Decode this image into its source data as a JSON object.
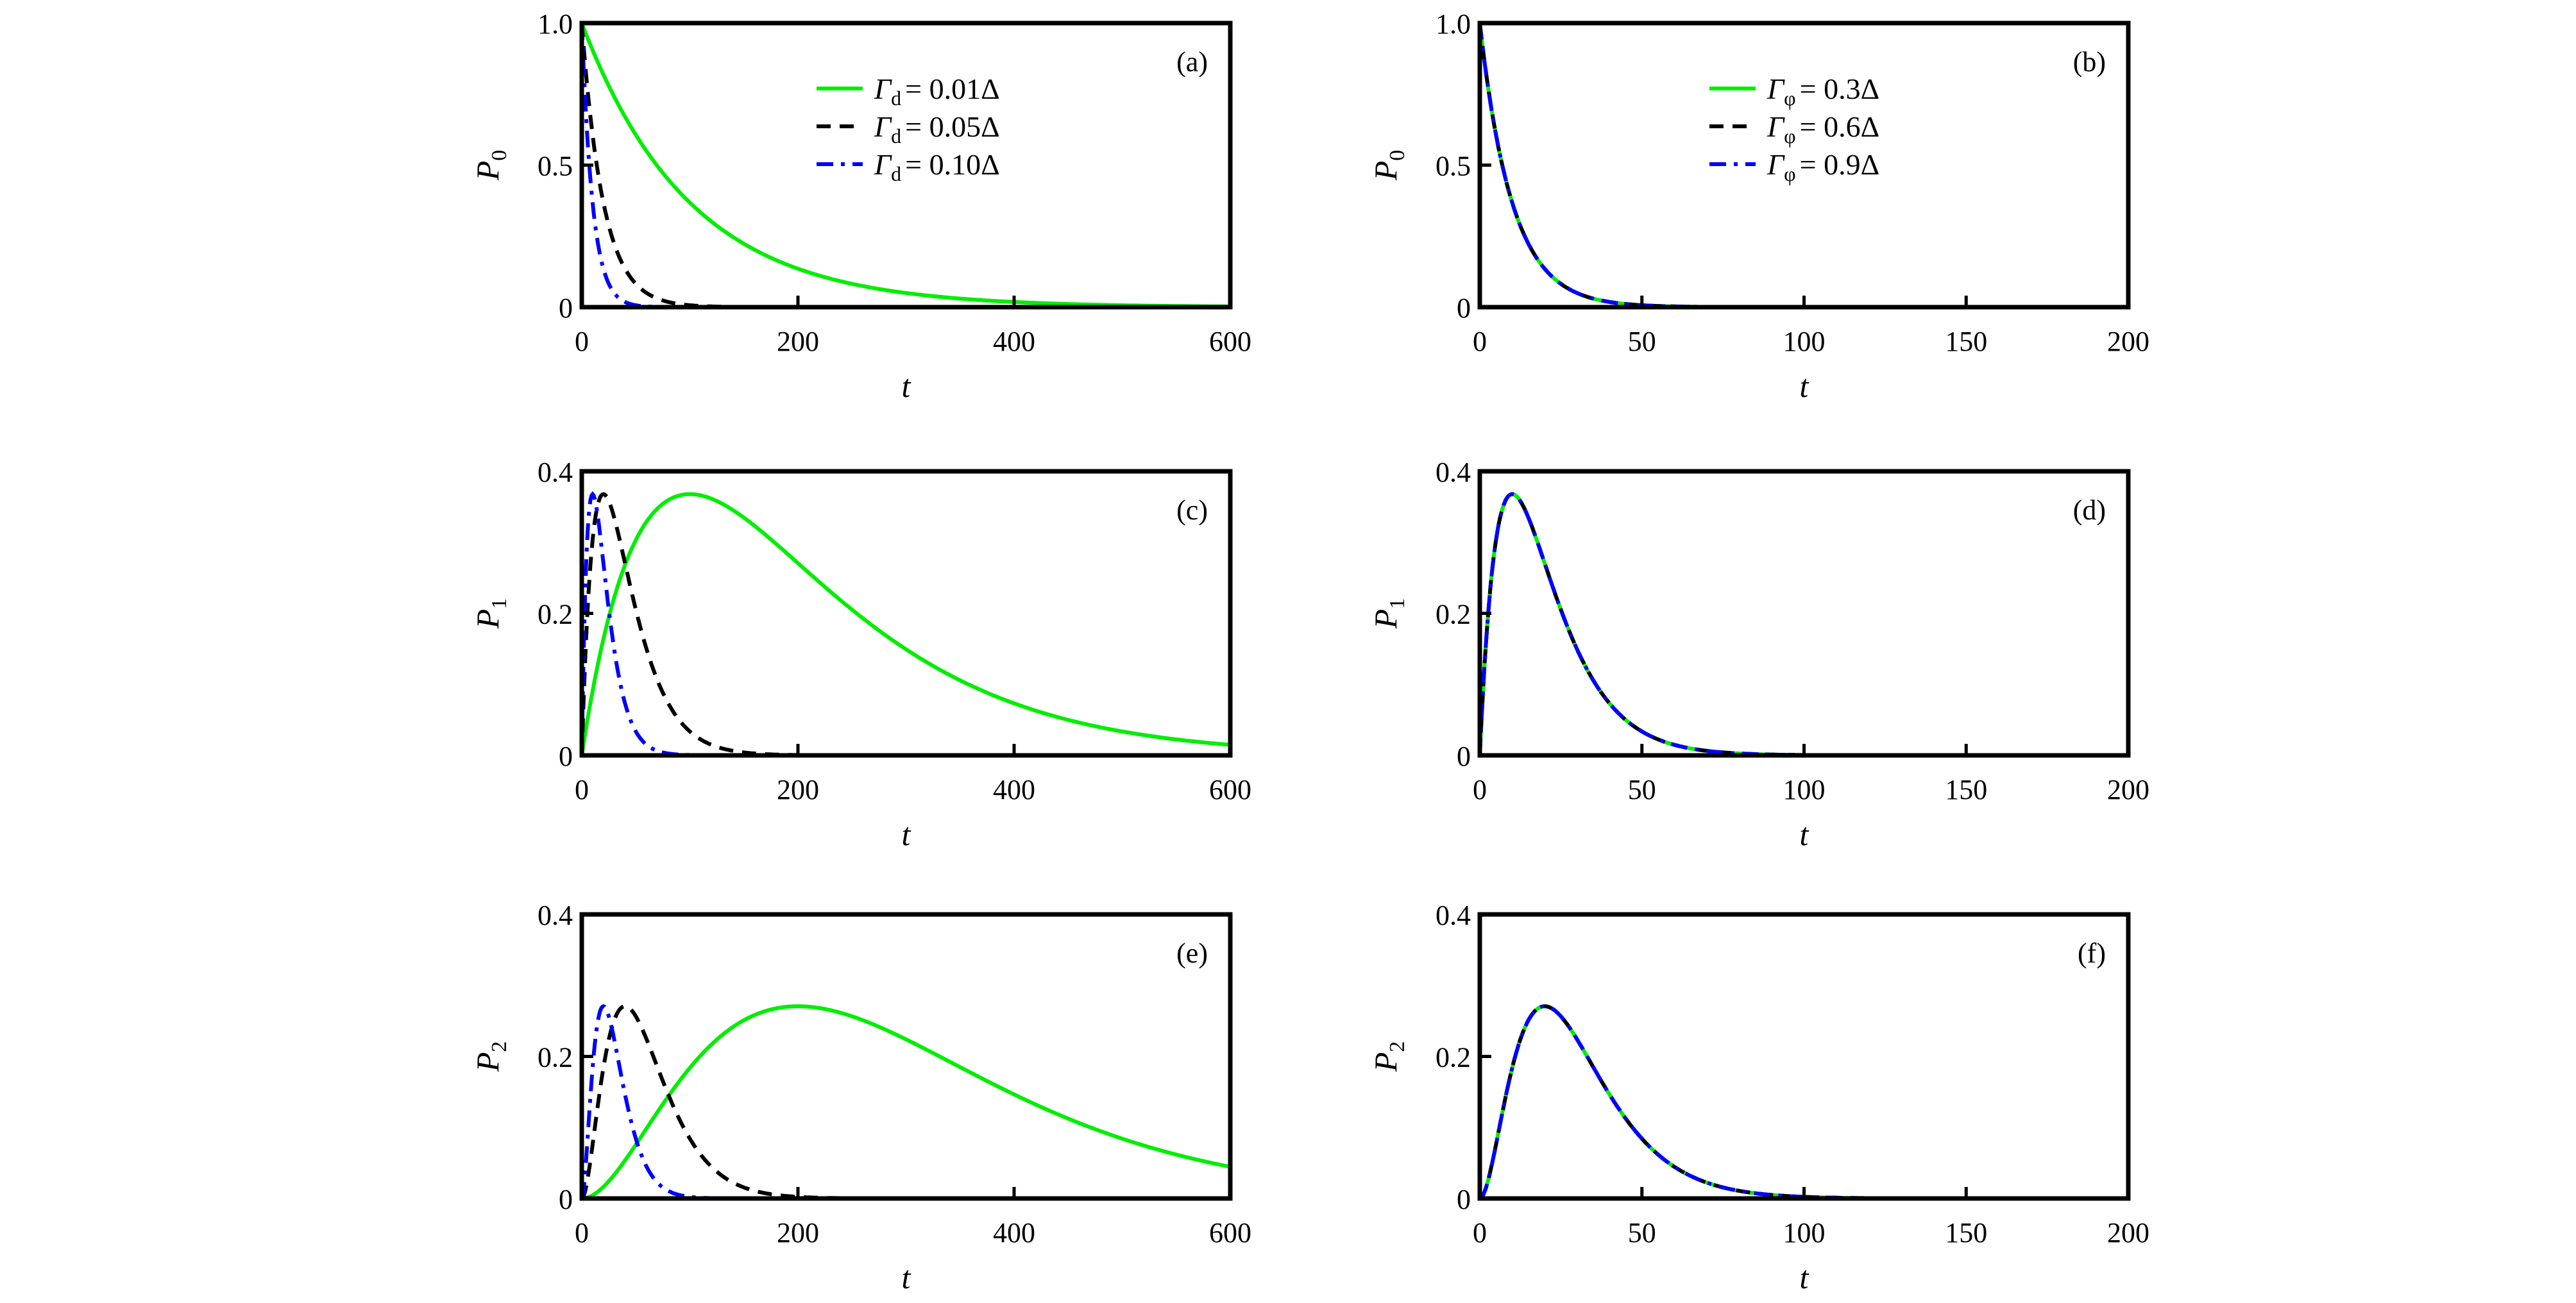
{
  "chart_data": [
    {
      "id": "a",
      "type": "line",
      "panel_label": "(a)",
      "xlabel": "t",
      "ylabel": "P",
      "ylabel_sub": "0",
      "xlim": [
        0,
        600
      ],
      "ylim": [
        0,
        1.0
      ],
      "xticks": [
        0,
        200,
        400,
        600
      ],
      "xtick_labels": [
        "0",
        "200",
        "400",
        "600"
      ],
      "yticks": [
        0,
        0.5,
        1.0
      ],
      "ytick_labels": [
        "0",
        "0.5",
        "1.0"
      ],
      "legend": "top-right",
      "order": 0,
      "series": [
        {
          "name": "Γd = 0.01Δ",
          "sym": "Γ",
          "sub": "d",
          "val": "= 0.01Δ",
          "color": "#00ee00",
          "style": "solid",
          "rate": 0.01
        },
        {
          "name": "Γd = 0.05Δ",
          "sym": "Γ",
          "sub": "d",
          "val": "= 0.05Δ",
          "color": "#000000",
          "style": "dashed",
          "rate": 0.05
        },
        {
          "name": "Γd = 0.10Δ",
          "sym": "Γ",
          "sub": "d",
          "val": "= 0.10Δ",
          "color": "#0000ff",
          "style": "dashdot",
          "rate": 0.1
        }
      ]
    },
    {
      "id": "b",
      "type": "line",
      "panel_label": "(b)",
      "xlabel": "t",
      "ylabel": "P",
      "ylabel_sub": "0",
      "xlim": [
        0,
        200
      ],
      "ylim": [
        0,
        1.0
      ],
      "xticks": [
        0,
        50,
        100,
        150,
        200
      ],
      "xtick_labels": [
        "0",
        "50",
        "100",
        "150",
        "200"
      ],
      "yticks": [
        0,
        0.5,
        1.0
      ],
      "ytick_labels": [
        "0",
        "0.5",
        "1.0"
      ],
      "legend": "top-right",
      "order": 0,
      "series": [
        {
          "name": "Γφ = 0.3Δ",
          "sym": "Γ",
          "sub": "φ",
          "val": "= 0.3Δ",
          "color": "#00ee00",
          "style": "solid",
          "rate": 0.1
        },
        {
          "name": "Γφ = 0.6Δ",
          "sym": "Γ",
          "sub": "φ",
          "val": "= 0.6Δ",
          "color": "#000000",
          "style": "dashed",
          "rate": 0.1
        },
        {
          "name": "Γφ = 0.9Δ",
          "sym": "Γ",
          "sub": "φ",
          "val": "= 0.9Δ",
          "color": "#0000ff",
          "style": "dashdot",
          "rate": 0.1
        }
      ]
    },
    {
      "id": "c",
      "type": "line",
      "panel_label": "(c)",
      "xlabel": "t",
      "ylabel": "P",
      "ylabel_sub": "1",
      "xlim": [
        0,
        600
      ],
      "ylim": [
        0,
        0.4
      ],
      "xticks": [
        0,
        200,
        400,
        600
      ],
      "xtick_labels": [
        "0",
        "200",
        "400",
        "600"
      ],
      "yticks": [
        0,
        0.2,
        0.4
      ],
      "ytick_labels": [
        "0",
        "0.2",
        "0.4"
      ],
      "order": 1,
      "series": [
        {
          "name": "Γd = 0.01Δ",
          "color": "#00ee00",
          "style": "solid",
          "rate": 0.01,
          "peak": [
            100,
            0.368
          ]
        },
        {
          "name": "Γd = 0.05Δ",
          "color": "#000000",
          "style": "dashed",
          "rate": 0.05,
          "peak": [
            20,
            0.368
          ]
        },
        {
          "name": "Γd = 0.10Δ",
          "color": "#0000ff",
          "style": "dashdot",
          "rate": 0.1,
          "peak": [
            10,
            0.368
          ]
        }
      ]
    },
    {
      "id": "d",
      "type": "line",
      "panel_label": "(d)",
      "xlabel": "t",
      "ylabel": "P",
      "ylabel_sub": "1",
      "xlim": [
        0,
        200
      ],
      "ylim": [
        0,
        0.4
      ],
      "xticks": [
        0,
        50,
        100,
        150,
        200
      ],
      "xtick_labels": [
        "0",
        "50",
        "100",
        "150",
        "200"
      ],
      "yticks": [
        0,
        0.2,
        0.4
      ],
      "ytick_labels": [
        "0",
        "0.2",
        "0.4"
      ],
      "order": 1,
      "series": [
        {
          "name": "Γφ = 0.3Δ",
          "color": "#00ee00",
          "style": "solid",
          "rate": 0.1,
          "peak": [
            10,
            0.368
          ]
        },
        {
          "name": "Γφ = 0.6Δ",
          "color": "#000000",
          "style": "dashed",
          "rate": 0.1,
          "peak": [
            10,
            0.368
          ]
        },
        {
          "name": "Γφ = 0.9Δ",
          "color": "#0000ff",
          "style": "dashdot",
          "rate": 0.1,
          "peak": [
            10,
            0.368
          ]
        }
      ]
    },
    {
      "id": "e",
      "type": "line",
      "panel_label": "(e)",
      "xlabel": "t",
      "ylabel": "P",
      "ylabel_sub": "2",
      "xlim": [
        0,
        600
      ],
      "ylim": [
        0,
        0.4
      ],
      "xticks": [
        0,
        200,
        400,
        600
      ],
      "xtick_labels": [
        "0",
        "200",
        "400",
        "600"
      ],
      "yticks": [
        0,
        0.2,
        0.4
      ],
      "ytick_labels": [
        "0",
        "0.2",
        "0.4"
      ],
      "order": 2,
      "series": [
        {
          "name": "Γd = 0.01Δ",
          "color": "#00ee00",
          "style": "solid",
          "rate": 0.01,
          "peak": [
            200,
            0.271
          ]
        },
        {
          "name": "Γd = 0.05Δ",
          "color": "#000000",
          "style": "dashed",
          "rate": 0.05,
          "peak": [
            40,
            0.271
          ]
        },
        {
          "name": "Γd = 0.10Δ",
          "color": "#0000ff",
          "style": "dashdot",
          "rate": 0.1,
          "peak": [
            20,
            0.271
          ]
        }
      ]
    },
    {
      "id": "f",
      "type": "line",
      "panel_label": "(f)",
      "xlabel": "t",
      "ylabel": "P",
      "ylabel_sub": "2",
      "xlim": [
        0,
        200
      ],
      "ylim": [
        0,
        0.4
      ],
      "xticks": [
        0,
        50,
        100,
        150,
        200
      ],
      "xtick_labels": [
        "0",
        "50",
        "100",
        "150",
        "200"
      ],
      "yticks": [
        0,
        0.2,
        0.4
      ],
      "ytick_labels": [
        "0",
        "0.2",
        "0.4"
      ],
      "order": 2,
      "series": [
        {
          "name": "Γφ = 0.3Δ",
          "color": "#00ee00",
          "style": "solid",
          "rate": 0.1,
          "peak": [
            20,
            0.271
          ]
        },
        {
          "name": "Γφ = 0.6Δ",
          "color": "#000000",
          "style": "dashed",
          "rate": 0.1,
          "peak": [
            20,
            0.271
          ]
        },
        {
          "name": "Γφ = 0.9Δ",
          "color": "#0000ff",
          "style": "dashdot",
          "rate": 0.1,
          "peak": [
            20,
            0.271
          ]
        }
      ]
    }
  ]
}
